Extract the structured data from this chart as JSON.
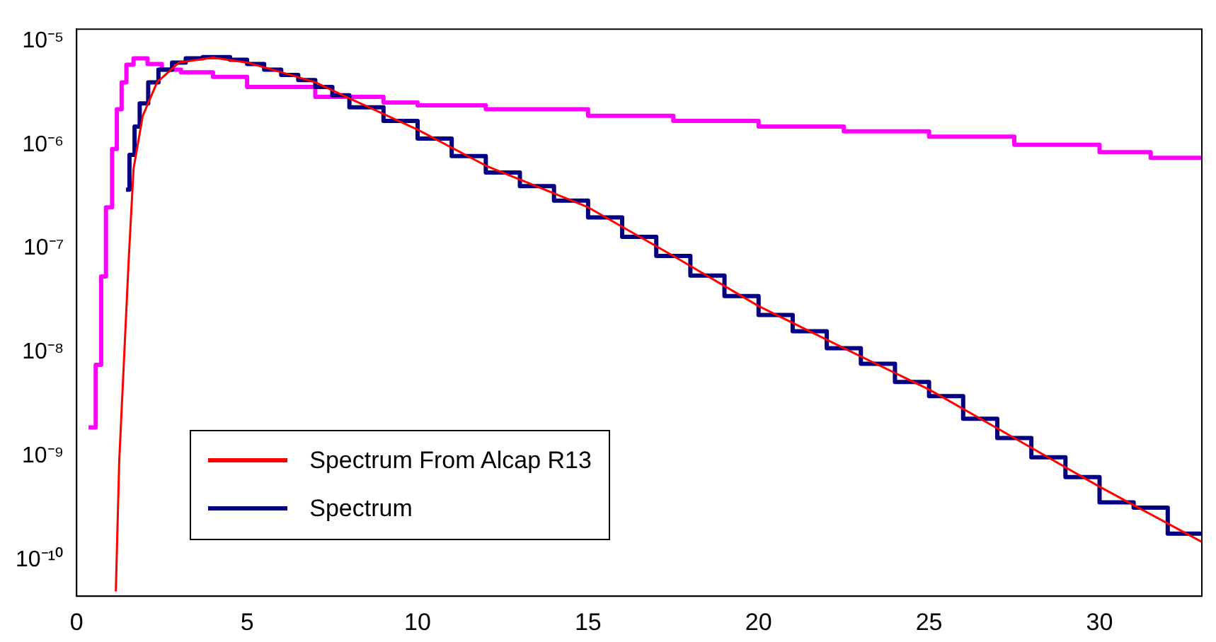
{
  "chart_data": {
    "type": "step",
    "log": "y",
    "xlim": [
      0,
      33
    ],
    "xticks": [
      0,
      5,
      10,
      15,
      20,
      25,
      30
    ],
    "ylim": [
      4.5e-11,
      1.3e-05
    ],
    "yticks": [
      {
        "value": 1e-10,
        "label": "10⁻¹⁰"
      },
      {
        "value": 1e-09,
        "label": "10⁻⁹"
      },
      {
        "value": 1e-08,
        "label": "10⁻⁸"
      },
      {
        "value": 1e-07,
        "label": "10⁻⁷"
      },
      {
        "value": 1e-06,
        "label": "10⁻⁶"
      },
      {
        "value": 1e-05,
        "label": "10⁻⁵"
      }
    ],
    "grid": false,
    "legend": "bottom left",
    "marker": "none",
    "line_style": "solid",
    "series": [
      {
        "name": "Spectrum From Alcap R13",
        "type": "line",
        "color": "#ff0000",
        "x": [
          1.15,
          1.25,
          1.53,
          1.67,
          1.94,
          2.36,
          3,
          4,
          5,
          6,
          7,
          8,
          10,
          12,
          15,
          17.5,
          20,
          22.5,
          25,
          27.5,
          30,
          33
        ],
        "values": [
          5e-11,
          9.1e-10,
          8.1e-08,
          5.9e-07,
          1.9e-06,
          4e-06,
          6.2e-06,
          6.9e-06,
          6.2e-06,
          5e-06,
          4e-06,
          2.8e-06,
          1.4e-06,
          6.3e-07,
          2.5e-07,
          8.5e-08,
          2.8e-08,
          1.1e-08,
          4.4e-09,
          1.5e-09,
          5.1e-10,
          1.5e-10
        ]
      },
      {
        "name": "Spectrum",
        "color": "#000080",
        "x": [
          1.45,
          1.55,
          1.7,
          1.85,
          2.1,
          2.4,
          2.8,
          3.2,
          3.7,
          4.5,
          5,
          5.5,
          6,
          6.5,
          7,
          7.5,
          8,
          9,
          10,
          11,
          12,
          13,
          14,
          15,
          16,
          17,
          18,
          19,
          20,
          21,
          22,
          23,
          24,
          25,
          26,
          27,
          28,
          29,
          30,
          31,
          32,
          33
        ],
        "values": [
          3.7e-07,
          3.7e-07,
          8e-07,
          1.5e-06,
          2.5e-06,
          4e-06,
          5.3e-06,
          6.2e-06,
          6.8e-06,
          7e-06,
          6.6e-06,
          6e-06,
          5.3e-06,
          4.7e-06,
          4.2e-06,
          3.6e-06,
          3e-06,
          2.3e-06,
          1.7e-06,
          1.15e-06,
          7.8e-07,
          5.4e-07,
          4e-07,
          2.9e-07,
          2e-07,
          1.3e-07,
          8.5e-08,
          5.5e-08,
          3.5e-08,
          2.3e-08,
          1.6e-08,
          1.1e-08,
          7.8e-09,
          5.2e-09,
          3.8e-09,
          2.3e-09,
          1.5e-09,
          9.8e-10,
          6.3e-10,
          3.6e-10,
          3.2e-10,
          1.8e-10
        ]
      },
      {
        "color": "#ff00ff",
        "x": [
          0.35,
          0.56,
          0.72,
          0.86,
          1.04,
          1.18,
          1.32,
          1.46,
          1.67,
          2.08,
          2.5,
          3.06,
          4,
          5,
          7,
          9,
          10,
          12,
          15,
          17.5,
          20,
          22.5,
          25,
          27.5,
          30,
          31.5,
          33
        ],
        "values": [
          1.9e-09,
          1.9e-09,
          7.6e-09,
          5.4e-08,
          2.5e-07,
          9.1e-07,
          2.2e-06,
          4e-06,
          5.9e-06,
          6.8e-06,
          6e-06,
          5.3e-06,
          5e-06,
          4.5e-06,
          3.6e-06,
          2.9e-06,
          2.55e-06,
          2.4e-06,
          2.2e-06,
          1.9e-06,
          1.7e-06,
          1.5e-06,
          1.35e-06,
          1.2e-06,
          1e-06,
          8.5e-07,
          7.5e-07
        ]
      }
    ]
  }
}
